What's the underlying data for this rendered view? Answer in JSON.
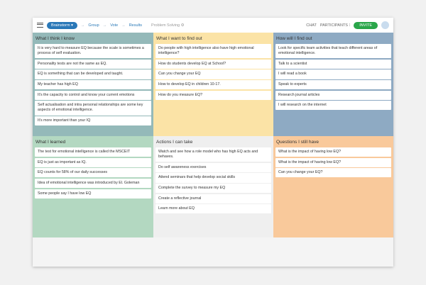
{
  "header": {
    "stage": "Brainstorm ▾",
    "steps": [
      "Group",
      "Vote",
      "Results"
    ],
    "board": "Problem Solving ⚙",
    "chat": "CHAT",
    "participants": "PARTICIPANTS ⁝",
    "invite": "INVITE",
    "avatar": "L"
  },
  "columns": [
    {
      "title": "What I think I know",
      "color": "#94b9b9",
      "items": [
        "It is very hard to measure EQ because the scale is sometimes a process of self evaluation.",
        "Personality tests are not the same as EQ.",
        "EQ is something that can be developed and taught.",
        "My teacher has high EQ",
        "It's the capacity to control and know your current emotions",
        "Self actualisation and intra personal relationships are some key aspects of emotional intelligence.",
        "It's more important than your IQ"
      ]
    },
    {
      "title": "What I want to find out",
      "color": "#fbe3a6",
      "items": [
        "Do people with high intelligence also have high emotional intelligence?",
        "How do students develop EQ at School?",
        "Can you change your EQ",
        "How to develop EQ in children 10-17.",
        "How do you measure EQ?"
      ]
    },
    {
      "title": "How will I find out",
      "color": "#8eaac3",
      "items": [
        "Look for specific team activities that teach different areas of emotional intelligence.",
        "Talk to a scientist",
        "I will read a book",
        "Speak to experts",
        "Research journal articles",
        "I will research on the internet"
      ]
    },
    {
      "title": "What I learned",
      "color": "#b3d8c1",
      "items": [
        "The test for emotional intelligence is called the MSCEIT",
        "EQ is just as important as IQ.",
        "EQ counts for 58% of our daily successes",
        "Idea of emotional intelligence was introduced by El. Goleman",
        "Some people say I have low EQ"
      ]
    },
    {
      "title": "Actions I can take",
      "color": "#efefef",
      "items": [
        "Watch and see how a role model who has high EQ acts and behaves.",
        "Do self awareness exercises",
        "Attend seminars that help develop social skills",
        "Complete the survey to measure my EQ",
        "Create a reflective journal",
        "Learn more about EQ"
      ]
    },
    {
      "title": "Questions I still have",
      "color": "#f9c99b",
      "items": [
        "What is the impact of having low EQ?",
        "What is the impact of having low EQ?",
        "Can you change your EQ?"
      ]
    }
  ]
}
